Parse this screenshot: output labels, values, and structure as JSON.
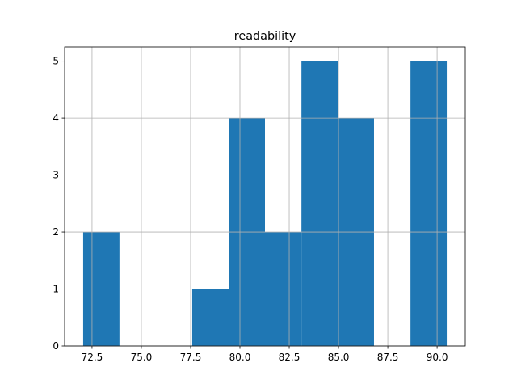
{
  "chart_data": {
    "type": "histogram",
    "title": "readability",
    "bins": [
      72.05,
      73.89,
      75.74,
      77.58,
      79.43,
      81.27,
      83.12,
      84.96,
      86.8,
      88.65,
      90.49
    ],
    "counts": [
      2,
      0,
      0,
      1,
      4,
      2,
      5,
      4,
      0,
      5
    ],
    "color": "#1f77b4",
    "xlim": [
      71.11,
      91.43
    ],
    "xticks": [
      72.5,
      {
        "value": 75,
        "label": "75.0"
      },
      77.5,
      {
        "value": 80,
        "label": "80.0"
      },
      82.5,
      {
        "value": 85,
        "label": "85.0"
      },
      87.5,
      {
        "value": 90,
        "label": "90.0"
      }
    ],
    "ylim": [
      0,
      5.25
    ],
    "yticks": [
      0,
      1,
      2,
      3,
      4,
      5
    ],
    "grid": true
  }
}
